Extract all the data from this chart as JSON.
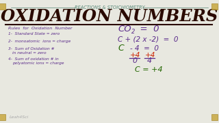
{
  "bg_color": "#e8e8e0",
  "title_top": "REACTIONS & STOICHIOMETRY",
  "title_main": "OXIDATION NUMBERS",
  "title_top_color": "#5a8a7a",
  "title_main_color": "#2a0a00",
  "left_header": "Rules  for  Oxidation  Number",
  "rules": [
    "1-  Standard state = zero",
    "2-  monoatomic  ions = charge",
    "3-  Sum of Oxidation #\n     in neutral = zero",
    "4-  Sum of oxidation # in\n     polyatomic ions = charge"
  ],
  "rules_color": "#5a2a8a",
  "math_color": "#5a2a8a",
  "red_color": "#cc2200",
  "green_color": "#226600",
  "watermark": "Leah4Sci",
  "watermark_color": "#aaaaaa",
  "corner_color": "#c8a840",
  "underline_color": "#2a0a00"
}
